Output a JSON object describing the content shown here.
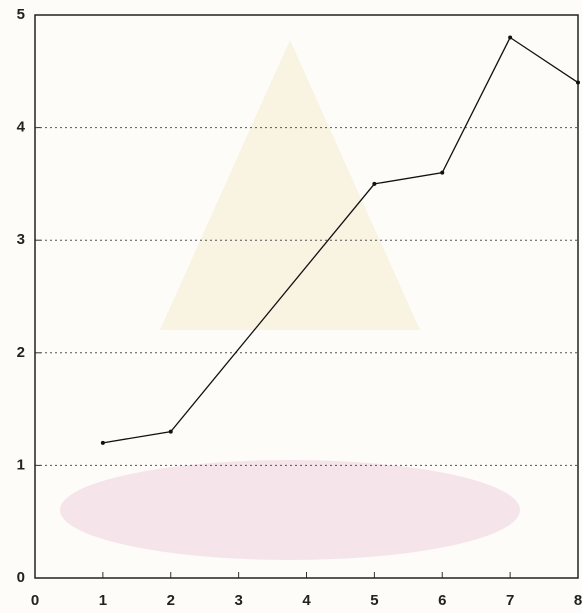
{
  "chart_data": {
    "type": "line",
    "x": [
      1,
      2,
      5,
      6,
      7,
      8
    ],
    "values": [
      1.2,
      1.3,
      3.5,
      3.6,
      4.8,
      4.4
    ],
    "color": "#111111",
    "xlim": [
      0,
      8
    ],
    "xticks": [
      0,
      1,
      2,
      3,
      4,
      5,
      6,
      7,
      8
    ],
    "ylim": [
      0,
      5
    ],
    "yticks": [
      0,
      1,
      2,
      3,
      4,
      5
    ],
    "grid": true
  }
}
